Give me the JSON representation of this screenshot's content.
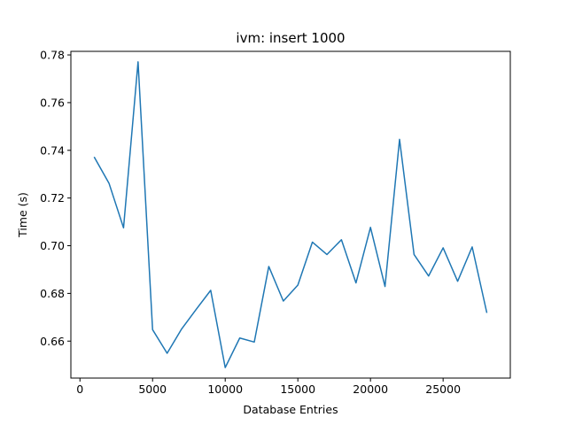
{
  "chart_data": {
    "type": "line",
    "title": "ivm: insert 1000",
    "xlabel": "Database Entries",
    "ylabel": "Time (s)",
    "xlim": [
      -625,
      29625
    ],
    "ylim": [
      0.6445,
      0.7815
    ],
    "grid": false,
    "x_ticks": [
      0,
      5000,
      10000,
      15000,
      20000,
      25000
    ],
    "y_ticks": [
      0.66,
      0.68,
      0.7,
      0.72,
      0.74,
      0.76,
      0.78
    ],
    "x_tick_labels": [
      "0",
      "5000",
      "10000",
      "15000",
      "20000",
      "25000"
    ],
    "y_tick_labels": [
      "0.66",
      "0.68",
      "0.70",
      "0.72",
      "0.74",
      "0.76",
      "0.78"
    ],
    "color": "#1f77b4",
    "series": [
      {
        "x": [
          1000,
          2000,
          3000,
          4000,
          5000,
          6000,
          7000,
          8000,
          9000,
          10000,
          11000,
          12000,
          13000,
          14000,
          15000,
          16000,
          17000,
          18000,
          19000,
          20000,
          21000,
          22000,
          23000,
          24000,
          25000,
          26000,
          27000,
          28000
        ],
        "y": [
          0.737,
          0.7262,
          0.7075,
          0.7771,
          0.6648,
          0.6549,
          0.6651,
          0.6733,
          0.6813,
          0.6489,
          0.6613,
          0.6596,
          0.6913,
          0.6768,
          0.6835,
          0.7015,
          0.6963,
          0.7025,
          0.6844,
          0.7077,
          0.6829,
          0.7446,
          0.6963,
          0.6873,
          0.6991,
          0.6851,
          0.6995,
          0.6721
        ]
      }
    ]
  }
}
